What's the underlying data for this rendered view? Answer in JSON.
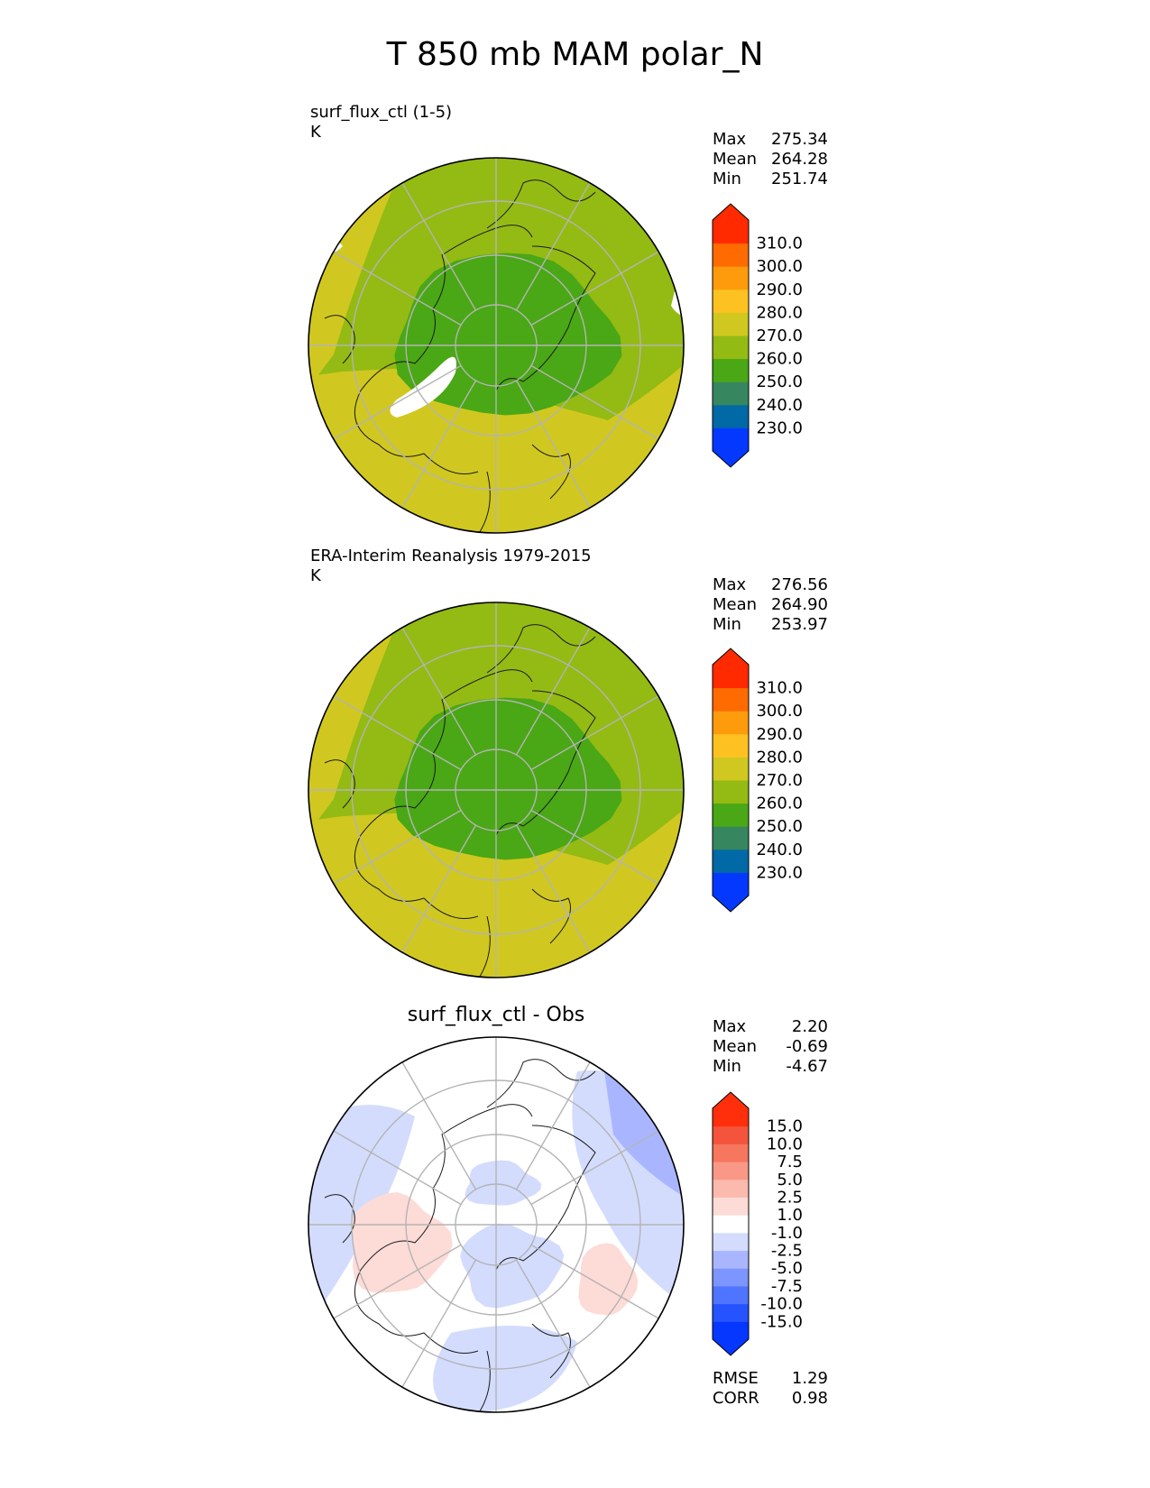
{
  "page": {
    "title": "T 850 mb MAM polar_N"
  },
  "colors": {
    "land_outline": "#1a1a1a",
    "grid": "#b4b4b4",
    "abs_levels": [
      "#0538ff",
      "#0069a6",
      "#36875f",
      "#4aa715",
      "#94ba14",
      "#d0c820",
      "#fdc221",
      "#fe9b0d",
      "#ff6b00",
      "#ff2a00"
    ],
    "diff_levels": [
      "#0537ff",
      "#2553ff",
      "#4f74ff",
      "#7c95ff",
      "#a9b6ff",
      "#d3dcfd",
      "#ffffff",
      "#fddbd6",
      "#fcb9ad",
      "#f99887",
      "#f7765e",
      "#f5543c",
      "#ff2f0b"
    ]
  },
  "chart_data": [
    {
      "type": "heatmap",
      "projection": "north-polar-stereographic",
      "title": "surf_flux_ctl (1-5)",
      "units": "K",
      "stats": [
        {
          "label": "Max",
          "value": "275.34"
        },
        {
          "label": "Mean",
          "value": "264.28"
        },
        {
          "label": "Min",
          "value": "251.74"
        }
      ],
      "colorbar": {
        "ticks": [
          "310.0",
          "300.0",
          "290.0",
          "280.0",
          "270.0",
          "260.0",
          "250.0",
          "240.0",
          "230.0"
        ],
        "extend": "both"
      }
    },
    {
      "type": "heatmap",
      "projection": "north-polar-stereographic",
      "title": "ERA-Interim Reanalysis 1979-2015",
      "units": "K",
      "stats": [
        {
          "label": "Max",
          "value": "276.56"
        },
        {
          "label": "Mean",
          "value": "264.90"
        },
        {
          "label": "Min",
          "value": "253.97"
        }
      ],
      "colorbar": {
        "ticks": [
          "310.0",
          "300.0",
          "290.0",
          "280.0",
          "270.0",
          "260.0",
          "250.0",
          "240.0",
          "230.0"
        ],
        "extend": "both"
      }
    },
    {
      "type": "heatmap",
      "projection": "north-polar-stereographic",
      "title": "surf_flux_ctl - Obs",
      "stats": [
        {
          "label": "Max",
          "value": "2.20"
        },
        {
          "label": "Mean",
          "value": "-0.69"
        },
        {
          "label": "Min",
          "value": "-4.67"
        }
      ],
      "colorbar": {
        "ticks": [
          "15.0",
          "10.0",
          "7.5",
          "5.0",
          "2.5",
          "1.0",
          "-1.0",
          "-2.5",
          "-5.0",
          "-7.5",
          "-10.0",
          "-15.0"
        ],
        "extend": "both"
      },
      "metrics": [
        {
          "label": "RMSE",
          "value": "1.29"
        },
        {
          "label": "CORR",
          "value": "0.98"
        }
      ]
    }
  ]
}
